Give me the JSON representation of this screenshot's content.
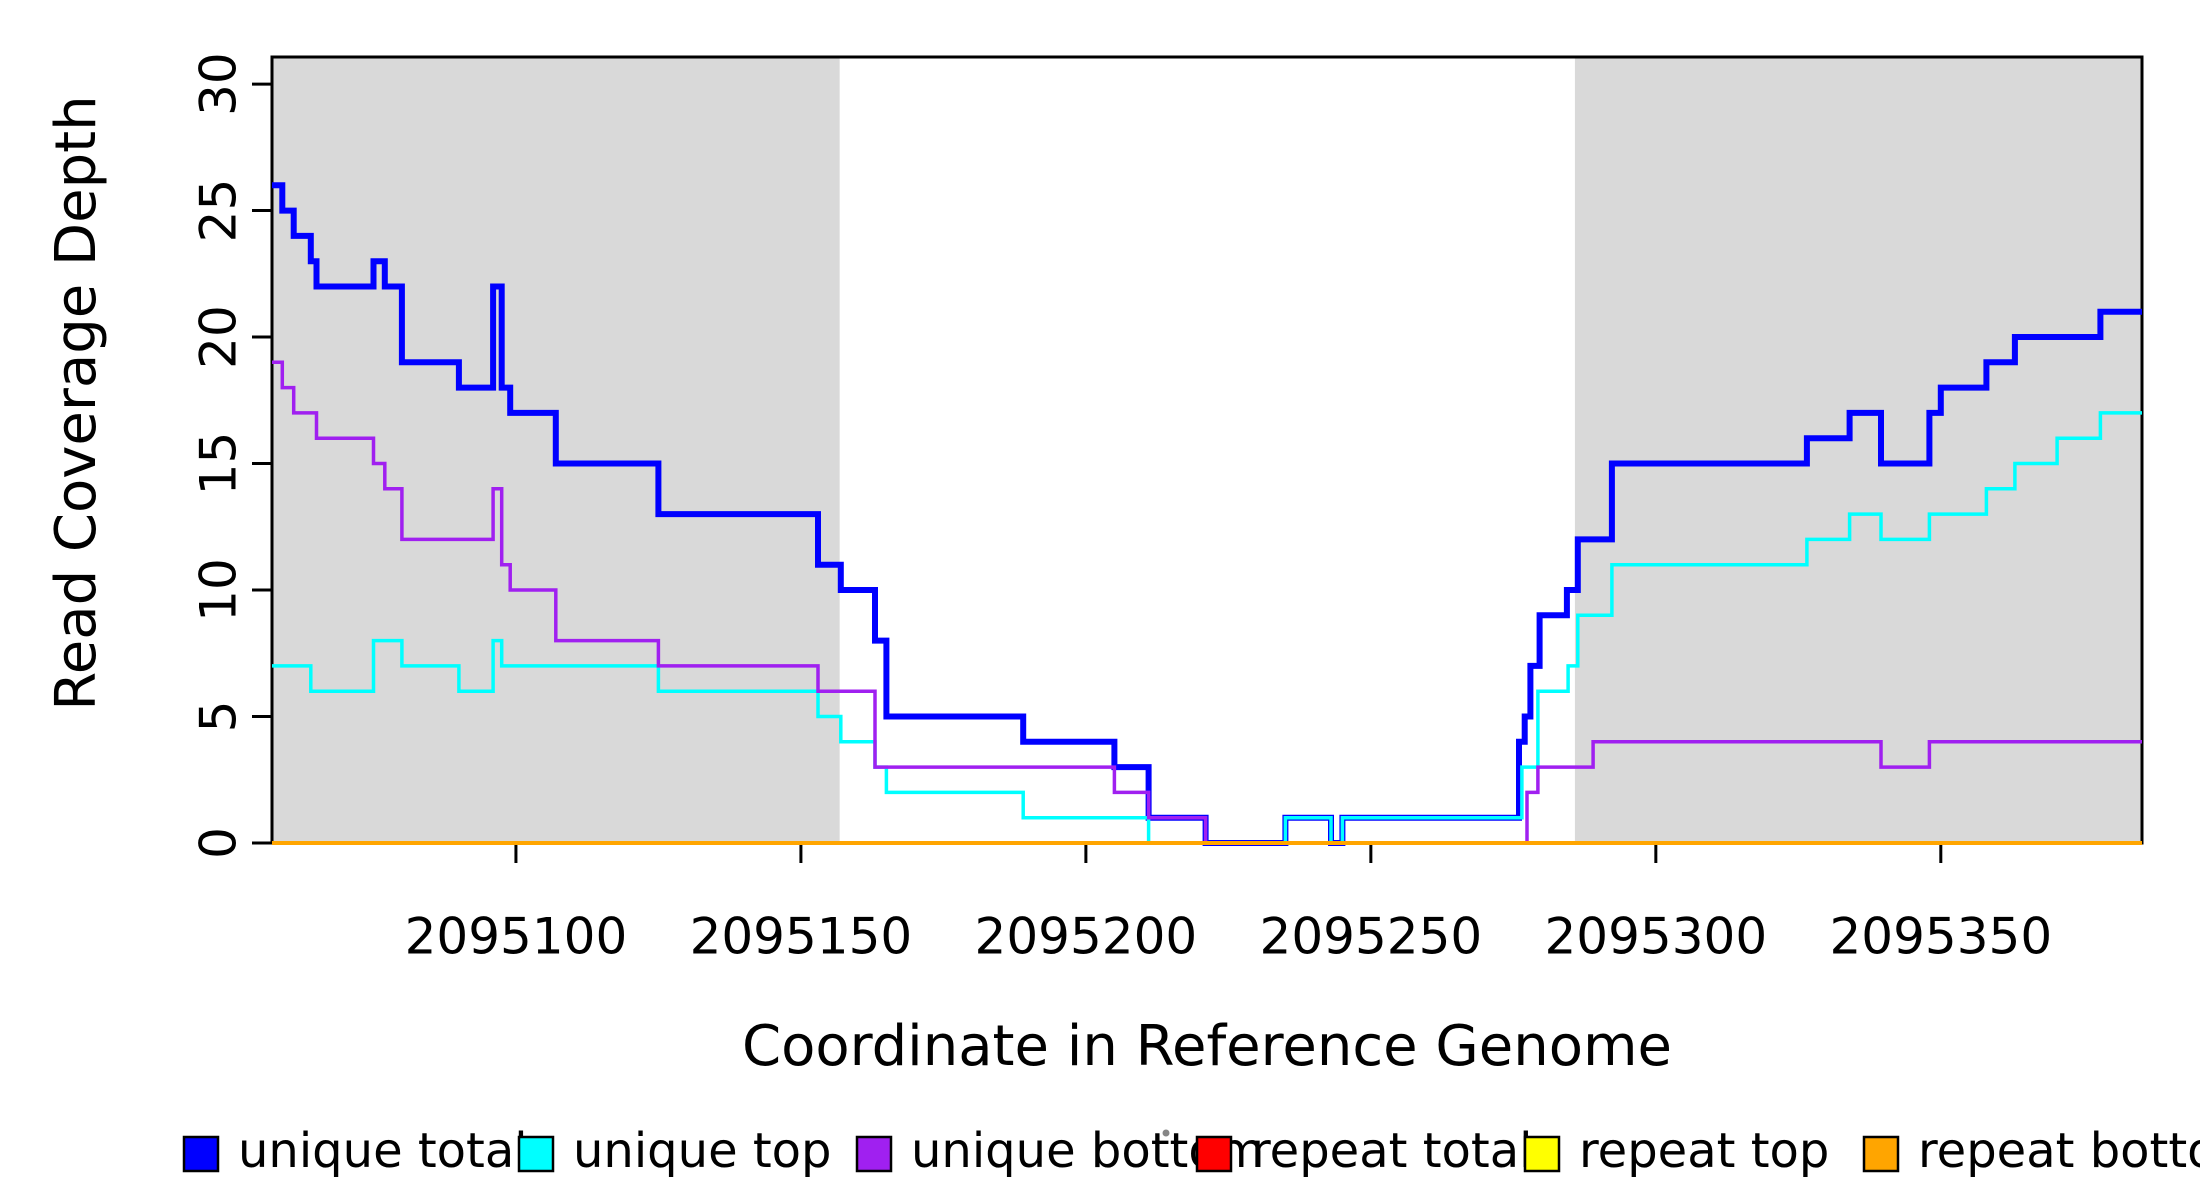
{
  "chart_data": {
    "type": "line",
    "subtype": "step",
    "title": "",
    "xlabel": "Coordinate in Reference Genome",
    "ylabel": "Read Coverage Depth",
    "xlim": [
      2095057.2,
      2095385.3
    ],
    "ylim": [
      0,
      31.07
    ],
    "grid": false,
    "band_color": "#D9D9D9",
    "x_ticks": [
      {
        "value": 2095100,
        "label": "2095100"
      },
      {
        "value": 2095150,
        "label": "2095150"
      },
      {
        "value": 2095200,
        "label": "2095200"
      },
      {
        "value": 2095250,
        "label": "2095250"
      },
      {
        "value": 2095300,
        "label": "2095300"
      },
      {
        "value": 2095350,
        "label": "2095350"
      }
    ],
    "y_ticks": [
      {
        "value": 0,
        "label": "0"
      },
      {
        "value": 5,
        "label": "5"
      },
      {
        "value": 10,
        "label": "10"
      },
      {
        "value": 15,
        "label": "15"
      },
      {
        "value": 20,
        "label": "20"
      },
      {
        "value": 25,
        "label": "25"
      },
      {
        "value": 30,
        "label": "30"
      }
    ],
    "shaded_regions": [
      {
        "from": 2095057.2,
        "to": 2095156.8
      },
      {
        "from": 2095285.8,
        "to": 2095385.3
      }
    ],
    "series": [
      {
        "name": "unique total",
        "color": "#0000FF",
        "width": 6,
        "steps": [
          [
            2095057.2,
            26
          ],
          [
            2095059,
            25
          ],
          [
            2095061,
            24
          ],
          [
            2095064,
            23
          ],
          [
            2095065,
            22
          ],
          [
            2095075,
            23
          ],
          [
            2095077,
            22
          ],
          [
            2095080,
            19
          ],
          [
            2095090,
            18
          ],
          [
            2095096,
            22
          ],
          [
            2095097.5,
            18
          ],
          [
            2095099,
            17
          ],
          [
            2095107,
            15
          ],
          [
            2095125,
            13
          ],
          [
            2095153,
            11
          ],
          [
            2095157,
            10
          ],
          [
            2095163,
            8
          ],
          [
            2095165,
            5
          ],
          [
            2095189,
            4
          ],
          [
            2095205,
            3
          ],
          [
            2095211,
            1
          ],
          [
            2095221,
            0
          ],
          [
            2095235,
            1
          ],
          [
            2095243,
            0
          ],
          [
            2095245,
            1
          ],
          [
            2095276,
            4
          ],
          [
            2095277,
            5
          ],
          [
            2095278,
            7
          ],
          [
            2095279.6,
            9
          ],
          [
            2095284.4,
            10
          ],
          [
            2095286.3,
            12
          ],
          [
            2095292.3,
            15
          ],
          [
            2095326.5,
            16
          ],
          [
            2095334,
            17
          ],
          [
            2095339.5,
            15
          ],
          [
            2095348,
            17
          ],
          [
            2095350,
            18
          ],
          [
            2095358,
            19
          ],
          [
            2095363,
            20
          ],
          [
            2095378,
            21
          ]
        ]
      },
      {
        "name": "unique top",
        "color": "#00FFFF",
        "width": 3.5,
        "steps": [
          [
            2095057.2,
            7
          ],
          [
            2095064,
            6
          ],
          [
            2095075,
            8
          ],
          [
            2095080,
            7
          ],
          [
            2095090,
            6
          ],
          [
            2095096,
            8
          ],
          [
            2095097.5,
            7
          ],
          [
            2095125,
            6
          ],
          [
            2095153,
            5
          ],
          [
            2095157,
            4
          ],
          [
            2095163,
            3
          ],
          [
            2095165,
            2
          ],
          [
            2095189,
            1
          ],
          [
            2095211,
            0
          ],
          [
            2095235,
            1
          ],
          [
            2095243,
            0
          ],
          [
            2095245,
            1
          ],
          [
            2095276.5,
            3
          ],
          [
            2095279.3,
            6
          ],
          [
            2095284.6,
            7
          ],
          [
            2095286.3,
            9
          ],
          [
            2095292.3,
            11
          ],
          [
            2095326.5,
            12
          ],
          [
            2095334,
            13
          ],
          [
            2095339.5,
            12
          ],
          [
            2095348,
            13
          ],
          [
            2095358,
            14
          ],
          [
            2095363,
            15
          ],
          [
            2095370.4,
            16
          ],
          [
            2095378,
            17
          ]
        ]
      },
      {
        "name": "unique bottom",
        "color": "#A020F0",
        "width": 3.5,
        "steps": [
          [
            2095057.2,
            19
          ],
          [
            2095059,
            18
          ],
          [
            2095061,
            17
          ],
          [
            2095065,
            16
          ],
          [
            2095075,
            15
          ],
          [
            2095077,
            14
          ],
          [
            2095080,
            12
          ],
          [
            2095096,
            14
          ],
          [
            2095097.5,
            11
          ],
          [
            2095099,
            10
          ],
          [
            2095107,
            8
          ],
          [
            2095125,
            7
          ],
          [
            2095153,
            6
          ],
          [
            2095163,
            3
          ],
          [
            2095205,
            2
          ],
          [
            2095211,
            1
          ],
          [
            2095221,
            0
          ],
          [
            2095277.4,
            2
          ],
          [
            2095279.3,
            3
          ],
          [
            2095289,
            4
          ],
          [
            2095339.5,
            3
          ],
          [
            2095348,
            4
          ]
        ]
      },
      {
        "name": "repeat total",
        "color": "#FF0000",
        "width": 4,
        "steps": [
          [
            2095057.2,
            0
          ]
        ]
      },
      {
        "name": "repeat top",
        "color": "#FFFF00",
        "width": 4,
        "steps": [
          [
            2095057.2,
            0
          ]
        ]
      },
      {
        "name": "repeat bottom",
        "color": "#FFA500",
        "width": 4,
        "steps": [
          [
            2095057.2,
            0
          ]
        ]
      }
    ]
  },
  "legend": {
    "entries": [
      {
        "label": "unique total",
        "color": "#0000FF"
      },
      {
        "label": "unique top",
        "color": "#00FFFF"
      },
      {
        "label": "unique bottom",
        "color": "#A020F0"
      },
      {
        "label": "repeat total",
        "color": "#FF0000"
      },
      {
        "label": "repeat top",
        "color": "#FFFF00"
      },
      {
        "label": "repeat bottom",
        "color": "#FFA500"
      }
    ]
  }
}
